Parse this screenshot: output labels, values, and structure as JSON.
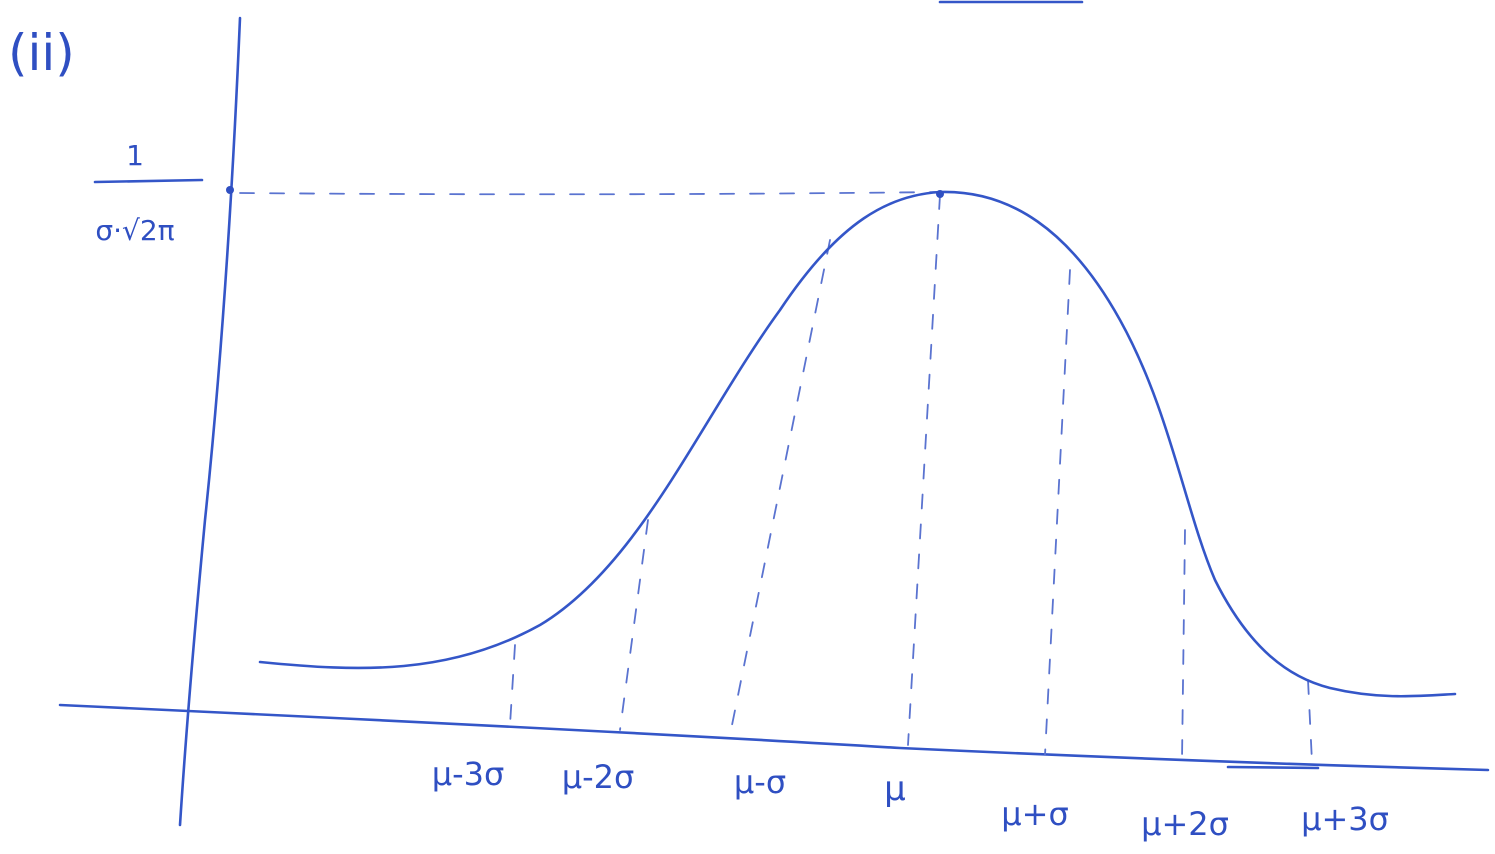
{
  "label": "(ii)",
  "peak_label": {
    "numerator": "1",
    "denominator": "σ·√2π"
  },
  "x_labels": [
    "μ-3σ",
    "μ-2σ",
    "μ-σ",
    "μ",
    "μ+σ",
    "μ+2σ",
    "μ+3σ"
  ]
}
